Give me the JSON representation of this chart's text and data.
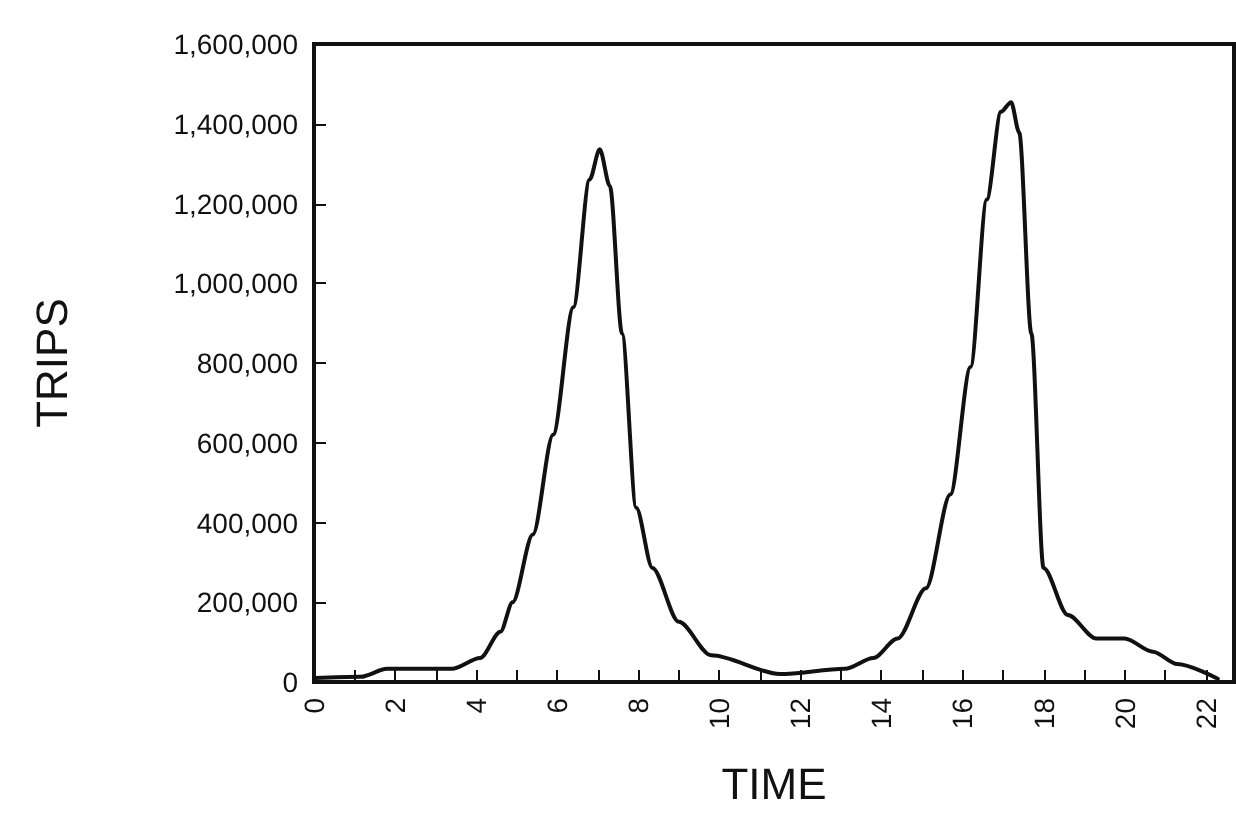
{
  "chart_data": {
    "type": "line",
    "xlabel": "TIME",
    "ylabel": "TRIPS",
    "x": [
      0,
      1.15,
      1.8,
      3.4,
      4.1,
      4.6,
      4.9,
      5.4,
      5.9,
      6.4,
      6.8,
      7.05,
      7.3,
      7.6,
      7.95,
      8.35,
      9.0,
      9.8,
      11.5,
      13.1,
      13.8,
      14.4,
      15.1,
      15.7,
      16.2,
      16.6,
      16.95,
      17.2,
      17.4,
      17.7,
      18.0,
      18.6,
      19.3,
      20.0,
      20.7,
      21.3,
      22.3
    ],
    "series": [
      {
        "color": "#111111",
        "values": [
          10000,
          13000,
          33000,
          33000,
          60000,
          126000,
          200000,
          370000,
          620000,
          940000,
          1260000,
          1336000,
          1244000,
          874000,
          437000,
          286000,
          151000,
          67000,
          20000,
          33000,
          60000,
          109000,
          235000,
          470000,
          790000,
          1210000,
          1430000,
          1454000,
          1378000,
          874000,
          286000,
          168000,
          109000,
          109000,
          76000,
          45000,
          8000
        ]
      }
    ],
    "xlim": [
      0,
      22.7
    ],
    "xticks": [
      0,
      {
        "value": 1,
        "label": null
      },
      2,
      {
        "value": 3,
        "label": null
      },
      4,
      {
        "value": 5,
        "label": null
      },
      6,
      {
        "value": 7,
        "label": null
      },
      8,
      {
        "value": 9,
        "label": null
      },
      10,
      {
        "value": 11,
        "label": null
      },
      12,
      {
        "value": 13,
        "label": null
      },
      14,
      {
        "value": 15,
        "label": null
      },
      16,
      {
        "value": 17,
        "label": null
      },
      18,
      {
        "value": 19,
        "label": null
      },
      20,
      {
        "value": 21,
        "label": null
      },
      22
    ],
    "ylim": [
      0,
      1600000
    ],
    "yticks": [
      {
        "value": 0,
        "label": "0"
      },
      {
        "value": 200000,
        "label": "200,000"
      },
      {
        "value": 400000,
        "label": "400,000"
      },
      {
        "value": 600000,
        "label": "600,000"
      },
      {
        "value": 800000,
        "label": "800,000"
      },
      {
        "value": 1000000,
        "label": "1,000,000"
      },
      {
        "value": 1200000,
        "label": "1,200,000"
      },
      {
        "value": 1400000,
        "label": "1,400,000"
      },
      {
        "value": 1600000,
        "label": "1,600,000"
      }
    ],
    "marker": "none",
    "line_style": "solid"
  }
}
